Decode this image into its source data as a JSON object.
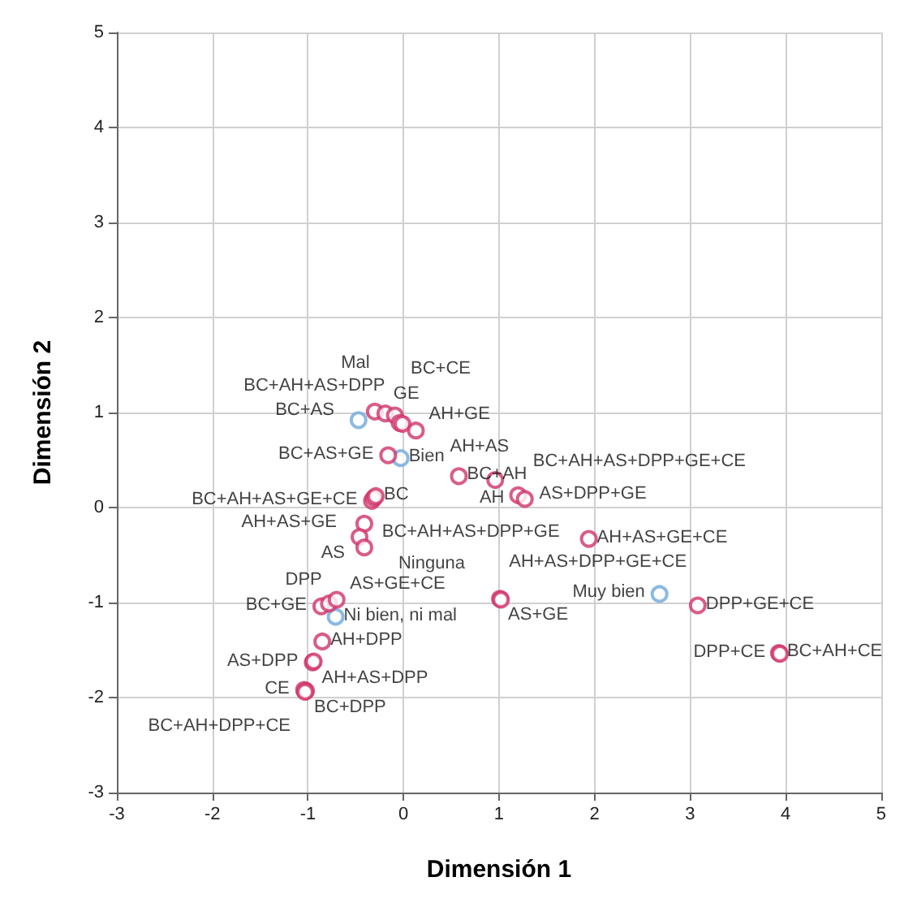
{
  "chart_data": {
    "type": "scatter",
    "xlabel": "Dimensión 1",
    "ylabel": "Dimensión 2",
    "xlim": [
      -3,
      5
    ],
    "ylim": [
      -3,
      5
    ],
    "xticks": [
      -3,
      -2,
      -1,
      0,
      1,
      2,
      3,
      4,
      5
    ],
    "yticks": [
      -3,
      -2,
      -1,
      0,
      1,
      2,
      3,
      4,
      5
    ],
    "grid": true,
    "marker": "circle",
    "series": [
      {
        "color": "#6fa8dc",
        "x": [
          -0.47,
          -0.03,
          -0.71,
          2.68
        ],
        "values": [
          0.92,
          0.52,
          -1.15,
          -0.91
        ],
        "value_labels": [
          "Mal",
          "Bien",
          "Ni bien, ni mal",
          "Muy bien"
        ]
      },
      {
        "color": "#d0336a",
        "x": [
          -0.3,
          -0.19,
          -0.09,
          -0.04,
          -0.01,
          0.13,
          -0.16,
          0.58,
          0.96,
          1.2,
          1.27,
          -0.33,
          -0.31,
          -0.29,
          -0.41,
          -0.46,
          -0.41,
          1.01,
          1.02,
          1.94,
          3.08,
          3.93,
          3.94,
          -0.86,
          -0.78,
          -0.7,
          -0.85,
          -0.95,
          -0.94,
          -1.04,
          -1.02,
          -1.03
        ],
        "values": [
          1.01,
          0.99,
          0.97,
          0.89,
          0.88,
          0.81,
          0.55,
          0.33,
          0.29,
          0.13,
          0.09,
          0.07,
          0.1,
          0.12,
          -0.17,
          -0.31,
          -0.42,
          -0.96,
          -0.97,
          -0.33,
          -1.03,
          -1.53,
          -1.54,
          -1.04,
          -1.01,
          -0.97,
          -1.41,
          -1.63,
          -1.62,
          -1.92,
          -1.93,
          -1.94
        ],
        "value_labels": [
          "BC+AS",
          "GE",
          "AH+GE",
          "BC+AH+AS+DPP",
          "BC+CE",
          "AH+AS",
          "BC+AS+GE",
          "BC+AH",
          "AH",
          "AS+DPP+GE",
          "BC+AH+AS+DPP+GE+CE",
          "BC+AH+AS+GE+CE",
          "BC+AH+AS+DPP+GE",
          "BC",
          "AH+AS+GE",
          "AS",
          "Ninguna",
          "AS+GE",
          "AH+AS+DPP+GE+CE",
          "AH+AS+GE+CE",
          "DPP+GE+CE",
          "BC+AH+CE",
          "DPP+CE",
          "BC+GE",
          "AS+GE+CE",
          "DPP",
          "AH+DPP",
          "AS+DPP",
          "AH+AS+DPP",
          "CE",
          "BC+DPP",
          "BC+AH+DPP+CE"
        ]
      }
    ]
  }
}
